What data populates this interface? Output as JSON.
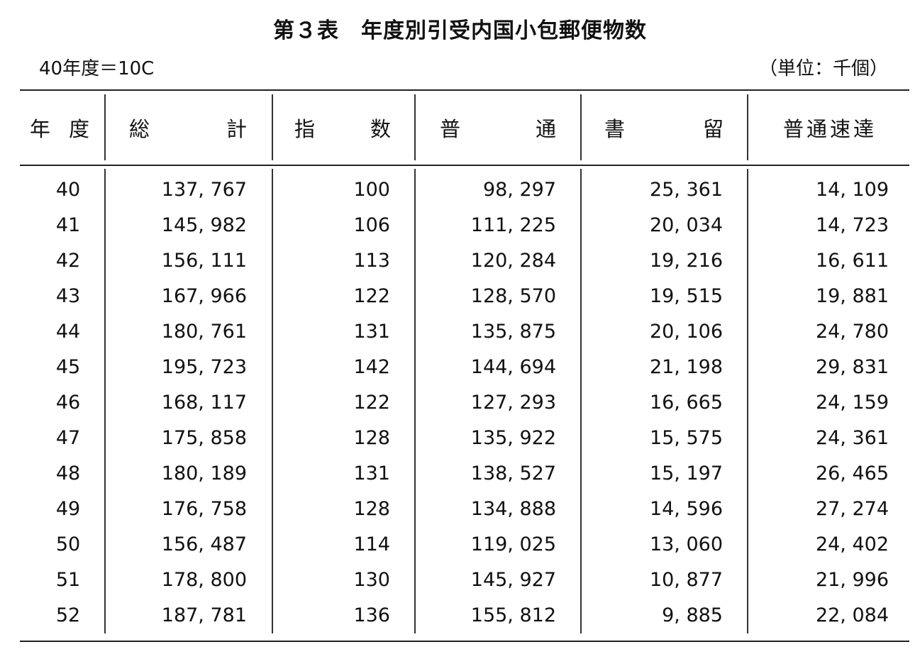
{
  "title": "第３表　年度別引受内国小包郵便物数",
  "base_note": "40年度＝10C",
  "unit_note": "（単位：千個）",
  "columns": {
    "year": [
      "年",
      "度"
    ],
    "total": [
      "総",
      "計"
    ],
    "index": [
      "指",
      "数"
    ],
    "ordinary": [
      "普",
      "通"
    ],
    "registered": [
      "書",
      "留"
    ],
    "express": "普通速達"
  },
  "rows": [
    {
      "year": "40",
      "total": "137, 767",
      "index": "100",
      "ordinary": "98, 297",
      "registered": "25, 361",
      "express": "14, 109"
    },
    {
      "year": "41",
      "total": "145, 982",
      "index": "106",
      "ordinary": "111, 225",
      "registered": "20, 034",
      "express": "14, 723"
    },
    {
      "year": "42",
      "total": "156, 111",
      "index": "113",
      "ordinary": "120, 284",
      "registered": "19, 216",
      "express": "16, 611"
    },
    {
      "year": "43",
      "total": "167, 966",
      "index": "122",
      "ordinary": "128, 570",
      "registered": "19, 515",
      "express": "19, 881"
    },
    {
      "year": "44",
      "total": "180, 761",
      "index": "131",
      "ordinary": "135, 875",
      "registered": "20, 106",
      "express": "24, 780"
    },
    {
      "year": "45",
      "total": "195, 723",
      "index": "142",
      "ordinary": "144, 694",
      "registered": "21, 198",
      "express": "29, 831"
    },
    {
      "year": "46",
      "total": "168, 117",
      "index": "122",
      "ordinary": "127, 293",
      "registered": "16, 665",
      "express": "24, 159"
    },
    {
      "year": "47",
      "total": "175, 858",
      "index": "128",
      "ordinary": "135, 922",
      "registered": "15, 575",
      "express": "24, 361"
    },
    {
      "year": "48",
      "total": "180, 189",
      "index": "131",
      "ordinary": "138, 527",
      "registered": "15, 197",
      "express": "26, 465"
    },
    {
      "year": "49",
      "total": "176, 758",
      "index": "128",
      "ordinary": "134, 888",
      "registered": "14, 596",
      "express": "27, 274"
    },
    {
      "year": "50",
      "total": "156, 487",
      "index": "114",
      "ordinary": "119, 025",
      "registered": "13, 060",
      "express": "24, 402"
    },
    {
      "year": "51",
      "total": "178, 800",
      "index": "130",
      "ordinary": "145, 927",
      "registered": "10, 877",
      "express": "21, 996"
    },
    {
      "year": "52",
      "total": "187, 781",
      "index": "136",
      "ordinary": "155, 812",
      "registered": "9, 885",
      "express": "22, 084"
    }
  ]
}
